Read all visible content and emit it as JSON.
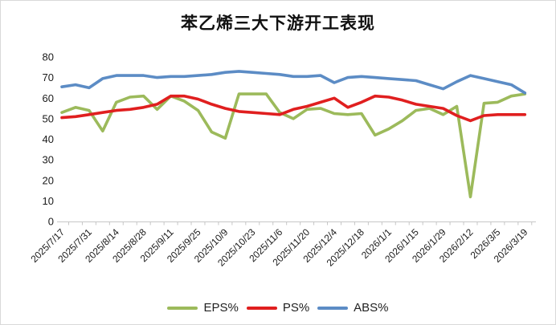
{
  "chart_data": {
    "type": "line",
    "title": "苯乙烯三大下游开工表现",
    "x": [
      "2025/7/17",
      "2025/7/24",
      "2025/7/31",
      "2025/8/7",
      "2025/8/14",
      "2025/8/21",
      "2025/8/28",
      "2025/9/4",
      "2025/9/11",
      "2025/9/18",
      "2025/9/25",
      "2025/10/2",
      "2025/10/9",
      "2025/10/16",
      "2025/10/23",
      "2025/10/30",
      "2025/11/6",
      "2025/11/13",
      "2025/11/20",
      "2025/11/27",
      "2025/12/4",
      "2025/12/11",
      "2025/12/18",
      "2025/12/25",
      "2026/1/1",
      "2026/1/8",
      "2026/1/15",
      "2026/1/22",
      "2026/1/29",
      "2026/2/5",
      "2026/2/12",
      "2026/2/26",
      "2026/3/5",
      "2026/3/12",
      "2026/3/19"
    ],
    "x_label_every": 2,
    "series": [
      {
        "name": "EPS%",
        "color": "#9CBA5B",
        "values": [
          53,
          55.5,
          54,
          44,
          58,
          60.5,
          61,
          54.5,
          61,
          58.5,
          54,
          43.5,
          40.5,
          62,
          62,
          62,
          53,
          50,
          54.5,
          55,
          52.5,
          52,
          52.5,
          42,
          45,
          49,
          54,
          55,
          52,
          56,
          12,
          57.5,
          58,
          61,
          62
        ]
      },
      {
        "name": "PS%",
        "color": "#E01F1F",
        "values": [
          50.5,
          51,
          52,
          53,
          54,
          54.5,
          55.5,
          57,
          61,
          61,
          59.5,
          57,
          55,
          53.5,
          53,
          52.5,
          52,
          54.5,
          56,
          58,
          60,
          55.5,
          58,
          61,
          60.5,
          59,
          57,
          56,
          55,
          51.5,
          49,
          51.5,
          52,
          52,
          52
        ]
      },
      {
        "name": "ABS%",
        "color": "#5C8CC5",
        "values": [
          65.5,
          66.5,
          65,
          69.5,
          71,
          71,
          71,
          70,
          70.5,
          70.5,
          71,
          71.5,
          72.5,
          73,
          72.5,
          72,
          71.5,
          70.5,
          70.5,
          71,
          67.5,
          70,
          70.5,
          70,
          69.5,
          69,
          68.5,
          66.5,
          64.5,
          68,
          71,
          69.5,
          68,
          66.5,
          62.5
        ]
      }
    ],
    "y_axis": {
      "min": 0,
      "max": 80,
      "step": 10
    },
    "ylim": [
      0,
      80
    ],
    "grid": false,
    "legend_position": "bottom"
  }
}
